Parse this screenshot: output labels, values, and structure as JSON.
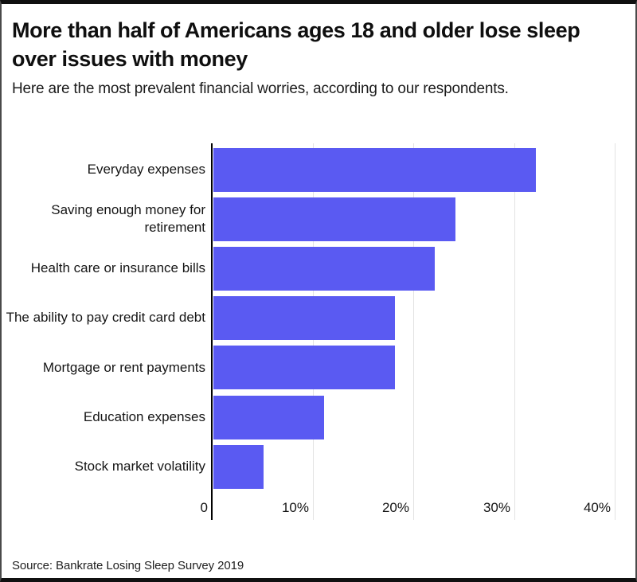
{
  "header": {
    "title": "More than half of Americans ages 18 and older lose sleep over issues with money",
    "subtitle": "Here are the most prevalent financial worries, according to our respondents."
  },
  "chart_data": {
    "type": "bar",
    "orientation": "horizontal",
    "title": "More than half of Americans ages 18 and older lose sleep over issues with money",
    "subtitle": "Here are the most prevalent financial worries, according to our respondents.",
    "categories": [
      "Everyday expenses",
      "Saving enough money for retirement",
      "Health care or insurance bills",
      "The ability to pay credit card debt",
      "Mortgage or rent payments",
      "Education expenses",
      "Stock market volatility"
    ],
    "values": [
      32,
      24,
      22,
      18,
      18,
      11,
      5
    ],
    "unit": "%",
    "xlabel": "",
    "ylabel": "",
    "xlim": [
      0,
      42
    ],
    "x_ticks": [
      {
        "label": "0",
        "value": 0
      },
      {
        "label": "10%",
        "value": 10
      },
      {
        "label": "20%",
        "value": 20
      },
      {
        "label": "30%",
        "value": 30
      },
      {
        "label": "40%",
        "value": 40
      }
    ],
    "grid": true,
    "legend": "none",
    "bar_color": "#5a5af2",
    "gridline_color": "#e3e3e3",
    "axis_color": "#000000"
  },
  "footer": {
    "source": "Source: Bankrate Losing Sleep Survey 2019"
  }
}
